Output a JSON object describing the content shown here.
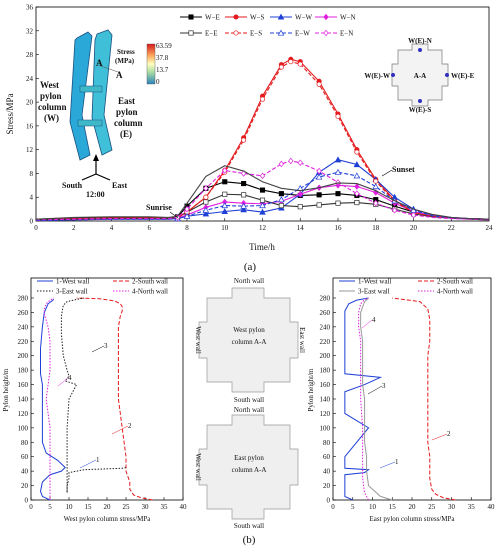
{
  "chart_data": [
    {
      "type": "line",
      "panel": "(a)",
      "xlabel": "Time/h",
      "ylabel": "Stress/MPa",
      "xlim": [
        0,
        24
      ],
      "ylim": [
        0,
        36
      ],
      "xticks": [
        0,
        2,
        4,
        6,
        8,
        10,
        12,
        14,
        16,
        18,
        20,
        22,
        24
      ],
      "yticks": [
        0,
        4,
        8,
        12,
        16,
        20,
        24,
        28,
        32,
        36
      ],
      "legend_position": "top-center",
      "series": [
        {
          "name": "W−E",
          "color": "#000000",
          "dash": "solid",
          "marker": "square-filled",
          "x": [
            0,
            2,
            4,
            6,
            7,
            7.5,
            8,
            9,
            10,
            11,
            12,
            13,
            14,
            15,
            16,
            17,
            18,
            19,
            20,
            21,
            22,
            23,
            24
          ],
          "y": [
            0.3,
            0.5,
            0.6,
            0.6,
            0.5,
            0.7,
            2.5,
            5.5,
            6.6,
            6.3,
            5.2,
            4.6,
            4.3,
            4.4,
            4.6,
            4.3,
            3.6,
            2.5,
            1.5,
            0.8,
            0.5,
            0.4,
            0.3
          ]
        },
        {
          "name": "W−S",
          "color": "#e41a1c",
          "dash": "solid",
          "marker": "circle-filled",
          "x": [
            0,
            2,
            4,
            6,
            7,
            7.5,
            8,
            9,
            10,
            11,
            12,
            13,
            13.5,
            14,
            15,
            16,
            17,
            18,
            19,
            20,
            21,
            22,
            23,
            24
          ],
          "y": [
            0.2,
            0.4,
            0.5,
            0.5,
            0.5,
            0.6,
            1.5,
            4,
            8.5,
            14,
            21,
            26.3,
            27.2,
            26.8,
            23.5,
            18,
            12,
            7,
            3.5,
            1.5,
            0.8,
            0.5,
            0.4,
            0.3
          ]
        },
        {
          "name": "W−W",
          "color": "#1f3fd6",
          "dash": "solid",
          "marker": "triangle-filled",
          "x": [
            0,
            2,
            4,
            6,
            7,
            7.5,
            8,
            9,
            10,
            11,
            12,
            13,
            14,
            15,
            16,
            17,
            18,
            19,
            20,
            21,
            22,
            23,
            24
          ],
          "y": [
            0.1,
            0.2,
            0.3,
            0.3,
            0.3,
            0.4,
            0.8,
            1.2,
            1.6,
            1.9,
            1.5,
            2.2,
            4.5,
            8.2,
            10.3,
            9.5,
            7,
            4,
            2,
            1,
            0.6,
            0.4,
            0.3
          ]
        },
        {
          "name": "W−N",
          "color": "#e020e0",
          "dash": "solid",
          "marker": "diamond-filled",
          "x": [
            0,
            2,
            4,
            6,
            7,
            7.5,
            8,
            9,
            10,
            11,
            12,
            13,
            14,
            15,
            16,
            17,
            18,
            19,
            20,
            21,
            22,
            23,
            24
          ],
          "y": [
            0.2,
            0.3,
            0.4,
            0.4,
            0.4,
            0.5,
            1,
            2.3,
            3.2,
            3,
            2.9,
            3.3,
            4.5,
            5.6,
            6,
            5.8,
            4.8,
            3,
            1.6,
            0.9,
            0.6,
            0.4,
            0.3
          ]
        },
        {
          "name": "E−E",
          "color": "#333333",
          "dash": "solid",
          "marker": "square-open",
          "x": [
            0,
            2,
            4,
            6,
            7,
            7.5,
            8,
            9,
            10,
            11,
            12,
            13,
            14,
            15,
            16,
            17,
            18,
            19,
            20,
            21,
            22,
            23,
            24
          ],
          "y": [
            0.2,
            0.3,
            0.4,
            0.4,
            0.4,
            0.6,
            1.5,
            3.2,
            4.5,
            4.4,
            3.5,
            2.6,
            2.4,
            2.7,
            3,
            3.1,
            2.8,
            2,
            1.2,
            0.7,
            0.5,
            0.3,
            0.2
          ]
        },
        {
          "name": "E−S",
          "color": "#e41a1c",
          "dash": "dash",
          "marker": "circle-open",
          "x": [
            0,
            2,
            4,
            6,
            7,
            7.5,
            8,
            9,
            10,
            11,
            12,
            13,
            13.5,
            14,
            15,
            16,
            17,
            18,
            19,
            20,
            21,
            22,
            23,
            24
          ],
          "y": [
            0.2,
            0.4,
            0.5,
            0.5,
            0.5,
            0.6,
            1.5,
            4,
            8.2,
            13.6,
            20.5,
            25.9,
            26.8,
            26.4,
            23,
            17.6,
            11.6,
            6.7,
            3.3,
            1.4,
            0.8,
            0.5,
            0.4,
            0.3
          ]
        },
        {
          "name": "E−W",
          "color": "#1f3fd6",
          "dash": "dash",
          "marker": "triangle-open",
          "x": [
            0,
            2,
            4,
            6,
            7,
            7.5,
            8,
            9,
            10,
            11,
            12,
            13,
            14,
            15,
            16,
            17,
            18,
            19,
            20,
            21,
            22,
            23,
            24
          ],
          "y": [
            0.1,
            0.2,
            0.3,
            0.3,
            0.3,
            0.4,
            0.8,
            1.8,
            2.6,
            2.5,
            2.6,
            3.6,
            5.5,
            7.4,
            8.2,
            7.6,
            5.8,
            3.4,
            1.8,
            0.9,
            0.5,
            0.4,
            0.3
          ]
        },
        {
          "name": "E−N",
          "color": "#e020e0",
          "dash": "dash",
          "marker": "diamond-open",
          "x": [
            0,
            2,
            4,
            6,
            7,
            7.5,
            8,
            9,
            10,
            11,
            12,
            13,
            13.5,
            14,
            15,
            16,
            17,
            18,
            19,
            20,
            21,
            22,
            23,
            24
          ],
          "y": [
            0.2,
            0.3,
            0.4,
            0.4,
            0.4,
            0.6,
            2,
            5.5,
            8.5,
            8,
            7.6,
            9.6,
            10.1,
            9.8,
            8.4,
            6.5,
            4.6,
            3,
            1.8,
            1,
            0.6,
            0.4,
            0.3,
            0.2
          ]
        },
        {
          "name": "",
          "color": "#444444",
          "dash": "solid",
          "marker": "none",
          "x": [
            0,
            2,
            4,
            6,
            7,
            7.5,
            8,
            9,
            10,
            11,
            12,
            13,
            14,
            15,
            16,
            17,
            18,
            19,
            20,
            21,
            22,
            23,
            24
          ],
          "y": [
            0.3,
            0.6,
            0.7,
            0.7,
            0.6,
            0.8,
            3,
            7.5,
            9.3,
            8.4,
            6.6,
            5.5,
            5.1,
            5.6,
            6.4,
            6.3,
            5.1,
            3.4,
            2,
            1.1,
            0.6,
            0.4,
            0.3
          ]
        }
      ],
      "annotations": [
        "Sunrise",
        "Sunset",
        "West pylon column (W)",
        "East pylon column (E)",
        "South",
        "East",
        "12:00",
        "A",
        "A"
      ],
      "colorbar": {
        "title": "Stress (MPa)",
        "ticks": [
          "63.59",
          "37.8",
          "13.7",
          "0"
        ]
      },
      "section_labels": [
        "W(E)-N",
        "W(E)-W",
        "A-A",
        "W(E)-E",
        "W(E)-S"
      ]
    },
    {
      "type": "line",
      "panel": "(b)-left",
      "xlabel": "West pylon column stress/MPa",
      "ylabel": "Pylon height/m",
      "xlim": [
        0,
        40
      ],
      "ylim": [
        0,
        280
      ],
      "xticks": [
        0,
        5,
        10,
        15,
        20,
        25,
        30,
        35,
        40
      ],
      "yticks": [
        0,
        20,
        40,
        60,
        80,
        100,
        120,
        140,
        160,
        180,
        200,
        220,
        240,
        260,
        280
      ],
      "legend_position": "top",
      "series": [
        {
          "name": "1-West wall",
          "color": "#1f3fd6",
          "dash": "solid",
          "x": [
            5,
            3,
            2.5,
            3,
            5,
            8,
            9,
            7,
            4,
            3,
            3,
            3,
            3,
            3,
            2.5,
            2.5,
            2.5,
            3,
            3.5,
            4.5,
            6
          ],
          "y": [
            0,
            5,
            12,
            25,
            35,
            40,
            45,
            55,
            65,
            80,
            100,
            120,
            140,
            160,
            175,
            190,
            210,
            240,
            260,
            272,
            278
          ]
        },
        {
          "name": "2-South wall",
          "color": "#e41a1c",
          "dash": "dash",
          "x": [
            32,
            29,
            27,
            26,
            26,
            25,
            25,
            24.5,
            24,
            23.5,
            23,
            23,
            23,
            23,
            23,
            23,
            23,
            23.5,
            24,
            24,
            23.5,
            22,
            18,
            12
          ],
          "y": [
            0,
            3,
            7,
            15,
            25,
            40,
            60,
            80,
            100,
            120,
            140,
            160,
            180,
            200,
            220,
            230,
            240,
            255,
            262,
            268,
            272,
            276,
            279,
            280
          ]
        },
        {
          "name": "3-East wall",
          "color": "#222222",
          "dash": "dot",
          "x": [
            25,
            24,
            14,
            10,
            10,
            9.5,
            9.5,
            9.5,
            9.5,
            10,
            12,
            9,
            10,
            9.5,
            8.5,
            8,
            8,
            8.5,
            9.5,
            12,
            14
          ],
          "y": [
            45,
            44,
            42,
            38,
            30,
            20,
            10,
            60,
            100,
            140,
            160,
            165,
            172,
            180,
            200,
            230,
            255,
            270,
            275,
            278,
            280
          ]
        },
        {
          "name": "4-North wall",
          "color": "#e020e0",
          "dash": "dot",
          "x": [
            5,
            5,
            5,
            5,
            5,
            5,
            4.5,
            4,
            4.5,
            5,
            5,
            5,
            4.5,
            3.5,
            3.5,
            4,
            5,
            6
          ],
          "y": [
            0,
            20,
            40,
            60,
            80,
            100,
            120,
            140,
            160,
            180,
            200,
            220,
            240,
            258,
            265,
            272,
            277,
            280
          ]
        }
      ],
      "annotations": [
        "1",
        "2",
        "3",
        "4"
      ]
    },
    {
      "type": "line",
      "panel": "(b)-right",
      "xlabel": "East pylon column stress/MPa",
      "ylabel": "Pylon height/m",
      "xlim": [
        0,
        40
      ],
      "ylim": [
        0,
        280
      ],
      "xticks": [
        0,
        5,
        10,
        15,
        20,
        25,
        30,
        35,
        40
      ],
      "yticks": [
        0,
        20,
        40,
        60,
        80,
        100,
        120,
        140,
        160,
        180,
        200,
        220,
        240,
        260,
        280
      ],
      "legend_position": "top",
      "series": [
        {
          "name": "1-West wall",
          "color": "#1f3fd6",
          "dash": "solid",
          "x": [
            5,
            3,
            3,
            8,
            9,
            3,
            3,
            9,
            3,
            3,
            8,
            12,
            3,
            3,
            3,
            3,
            3,
            4,
            6,
            9
          ],
          "y": [
            0,
            5,
            35,
            38,
            42,
            44,
            60,
            100,
            120,
            150,
            160,
            170,
            175,
            200,
            230,
            250,
            262,
            272,
            277,
            280
          ]
        },
        {
          "name": "2-South wall",
          "color": "#e41a1c",
          "dash": "dash",
          "x": [
            31,
            28,
            26,
            25,
            24.5,
            24.5,
            24,
            24,
            24,
            24,
            24,
            24,
            24,
            24.5,
            24.5,
            24,
            22,
            15
          ],
          "y": [
            0,
            3,
            8,
            15,
            30,
            60,
            80,
            100,
            120,
            140,
            160,
            180,
            200,
            220,
            250,
            265,
            275,
            280
          ]
        },
        {
          "name": "3-East wall",
          "color": "#999999",
          "dash": "solid",
          "x": [
            15,
            12,
            9,
            8.5,
            8.5,
            8,
            8,
            8,
            7.5,
            7.5,
            7.5,
            7.5,
            7,
            7,
            8,
            9
          ],
          "y": [
            0,
            5,
            20,
            40,
            60,
            80,
            100,
            140,
            160,
            180,
            200,
            220,
            240,
            260,
            275,
            280
          ]
        },
        {
          "name": "4-North wall",
          "color": "#e020e0",
          "dash": "dot",
          "x": [
            9,
            8,
            7.5,
            7.5,
            7.5,
            7,
            7,
            7,
            7,
            6.5,
            6.5,
            7,
            8,
            9
          ],
          "y": [
            0,
            10,
            30,
            60,
            100,
            140,
            160,
            200,
            220,
            240,
            260,
            272,
            278,
            280
          ]
        }
      ],
      "annotations": [
        "1",
        "2",
        "3",
        "4"
      ]
    }
  ],
  "labels": {
    "panel_a": "(a)",
    "panel_b": "(b)",
    "sections_top": {
      "north": "North wall",
      "west": "West wall",
      "center": "West pylon column A-A",
      "south": "South wall",
      "east": "East wall"
    },
    "sections_bottom": {
      "north": "North wall",
      "west": "West wall",
      "center": "East pylon column A-A",
      "south": "South wall"
    }
  }
}
